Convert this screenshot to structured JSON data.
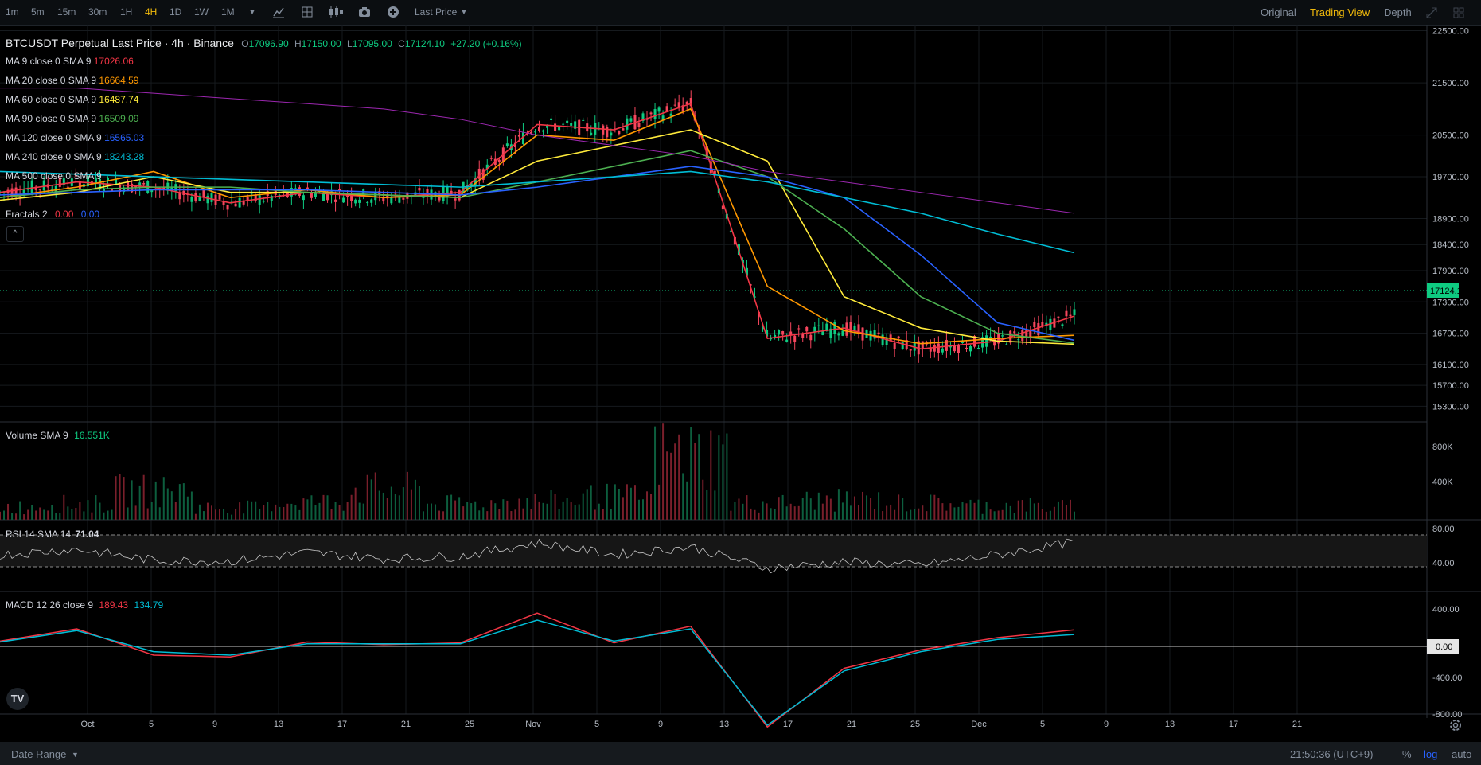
{
  "toolbar": {
    "timeframes": [
      "1m",
      "5m",
      "15m",
      "30m",
      "1H",
      "4H",
      "1D",
      "1W",
      "1M"
    ],
    "active_timeframe": "4H",
    "price_type": "Last Price",
    "views": [
      "Original",
      "Trading View",
      "Depth"
    ],
    "active_view": "Trading View"
  },
  "header": {
    "symbol": "BTCUSDT Perpetual Last Price · 4h · Binance",
    "o_label": "O",
    "o": "17096.90",
    "h_label": "H",
    "h": "17150.00",
    "l_label": "L",
    "l": "17095.00",
    "c_label": "C",
    "c": "17124.10",
    "change": "+27.20 (+0.16%)"
  },
  "indicators": [
    {
      "label": "MA 9 close 0 SMA 9",
      "value": "17026.06",
      "color": "#f23645"
    },
    {
      "label": "MA 20 close 0 SMA 9",
      "value": "16664.59",
      "color": "#ff9800"
    },
    {
      "label": "MA 60 close 0 SMA 9",
      "value": "16487.74",
      "color": "#ffeb3b"
    },
    {
      "label": "MA 90 close 0 SMA 9",
      "value": "16509.09",
      "color": "#4caf50"
    },
    {
      "label": "MA 120 close 0 SMA 9",
      "value": "16565.03",
      "color": "#2962ff"
    },
    {
      "label": "MA 240 close 0 SMA 9",
      "value": "18243.28",
      "color": "#00bcd4"
    },
    {
      "label": "MA 500 close 0 SMA 9",
      "value": "",
      "color": "#9c27b0"
    }
  ],
  "fractals": {
    "label": "Fractals 2",
    "up": "0.00",
    "down": "0.00",
    "up_color": "#f23645",
    "down_color": "#2962ff"
  },
  "volume": {
    "label": "Volume SMA 9",
    "value": "16.551K",
    "axis": [
      "800K",
      "400K"
    ]
  },
  "rsi": {
    "label": "RSI 14 SMA 14",
    "value": "71.04",
    "axis": [
      "80.00",
      "40.00"
    ]
  },
  "macd": {
    "label": "MACD 12 26 close 9",
    "macd": "189.43",
    "signal": "134.79",
    "axis": [
      "400.00",
      "0.00",
      "-400.00",
      "-800.00"
    ]
  },
  "price_axis": [
    "22500.00",
    "21500.00",
    "20500.00",
    "19700.00",
    "18900.00",
    "18400.00",
    "17900.00",
    "17300.00",
    "16700.00",
    "16100.00",
    "15700.00",
    "15300.00"
  ],
  "current_price": "17124.10",
  "time_axis": [
    "Oct",
    "5",
    "9",
    "13",
    "17",
    "21",
    "25",
    "Nov",
    "5",
    "9",
    "13",
    "17",
    "21",
    "25",
    "Dec",
    "5",
    "9",
    "13",
    "17",
    "21"
  ],
  "bottom": {
    "date_range": "Date Range",
    "clock": "21:50:36 (UTC+9)",
    "pct": "%",
    "log": "log",
    "auto": "auto"
  },
  "colors": {
    "up": "#0ecb81",
    "down": "#f6465d",
    "accent": "#f0b90b",
    "bg": "#000000"
  },
  "chart_data": {
    "type": "line",
    "symbol": "BTCUSDT",
    "interval": "4h",
    "x": [
      "Oct",
      "5",
      "9",
      "13",
      "17",
      "21",
      "25",
      "Nov",
      "5",
      "9",
      "13",
      "17",
      "21",
      "25",
      "Dec"
    ],
    "series": [
      {
        "name": "MA 9",
        "values": [
          19400,
          19600,
          19500,
          19200,
          19400,
          19300,
          19400,
          20700,
          20600,
          21100,
          16600,
          16800,
          16400,
          16550,
          17030
        ]
      },
      {
        "name": "MA 20",
        "values": [
          19300,
          19500,
          19800,
          19300,
          19450,
          19300,
          19350,
          20500,
          20400,
          21000,
          17600,
          16750,
          16500,
          16600,
          16660
        ]
      },
      {
        "name": "MA 60",
        "values": [
          19250,
          19400,
          19700,
          19400,
          19400,
          19350,
          19300,
          20000,
          20300,
          20600,
          20000,
          17400,
          16800,
          16550,
          16490
        ]
      },
      {
        "name": "MA 90",
        "values": [
          19300,
          19450,
          19500,
          19500,
          19400,
          19350,
          19300,
          19600,
          19900,
          20200,
          19700,
          18700,
          17400,
          16700,
          16510
        ]
      },
      {
        "name": "MA 120",
        "values": [
          19350,
          19400,
          19450,
          19450,
          19450,
          19400,
          19350,
          19500,
          19700,
          19900,
          19700,
          19300,
          18200,
          16900,
          16565
        ]
      },
      {
        "name": "MA 240",
        "values": [
          19800,
          19750,
          19700,
          19650,
          19600,
          19550,
          19500,
          19600,
          19700,
          19800,
          19600,
          19300,
          19000,
          18600,
          18243
        ]
      },
      {
        "name": "MA 500",
        "values": [
          21400,
          21400,
          21300,
          21200,
          21100,
          21000,
          20800,
          20500,
          20300,
          20100,
          19800,
          19600,
          19400,
          19200,
          19000
        ]
      }
    ],
    "volume": [
      180,
      220,
      400,
      170,
      250,
      420,
      220,
      260,
      320,
      900,
      230,
      270,
      230,
      200,
      180
    ],
    "rsi": [
      55,
      62,
      48,
      47,
      58,
      50,
      53,
      70,
      55,
      65,
      38,
      46,
      42,
      55,
      71
    ],
    "macd": [
      60,
      200,
      -100,
      -120,
      50,
      20,
      40,
      380,
      40,
      230,
      -920,
      -250,
      -40,
      100,
      189
    ],
    "signal": [
      50,
      180,
      -60,
      -100,
      30,
      30,
      30,
      300,
      60,
      200,
      -900,
      -280,
      -60,
      80,
      135
    ]
  }
}
